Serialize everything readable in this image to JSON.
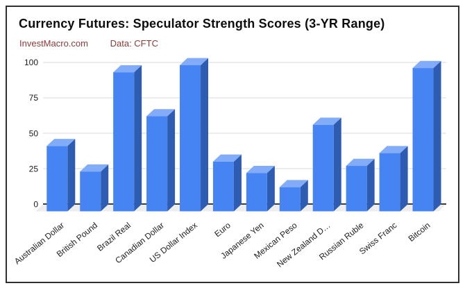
{
  "chart_data": {
    "type": "bar",
    "style": "3d-column",
    "title": "Currency Futures: Speculator Strength Scores (3-YR Range)",
    "subtitle_source": "InvestMacro.com",
    "subtitle_data": "Data: CFTC",
    "categories": [
      "Australian Dollar",
      "British Pound",
      "Brazil Real",
      "Canadian Dollar",
      "US Dollar Index",
      "Euro",
      "Japanese Yen",
      "Mexican Peso",
      "New Zealand D…",
      "Russian Ruble",
      "Swiss Franc",
      "Bitcoin"
    ],
    "values": [
      41,
      23,
      93,
      62,
      98,
      30,
      22,
      12,
      56,
      27,
      36,
      96
    ],
    "y_ticks": [
      0,
      25,
      50,
      75,
      100
    ],
    "ylim": [
      0,
      100
    ],
    "xlabel": "",
    "ylabel": "",
    "grid": true,
    "legend": "none",
    "colors": {
      "bar_front": "#4684f4",
      "bar_top": "#82acf8",
      "bar_side": "#2e5cb1",
      "gridline": "#d9d9d9",
      "axis_line": "#3d3d3d",
      "floor": "#ededed",
      "tick_label": "#1a1a1a",
      "category_label": "#222222",
      "subtitle": "#8b3a3a",
      "title": "#0d0d0d"
    }
  }
}
